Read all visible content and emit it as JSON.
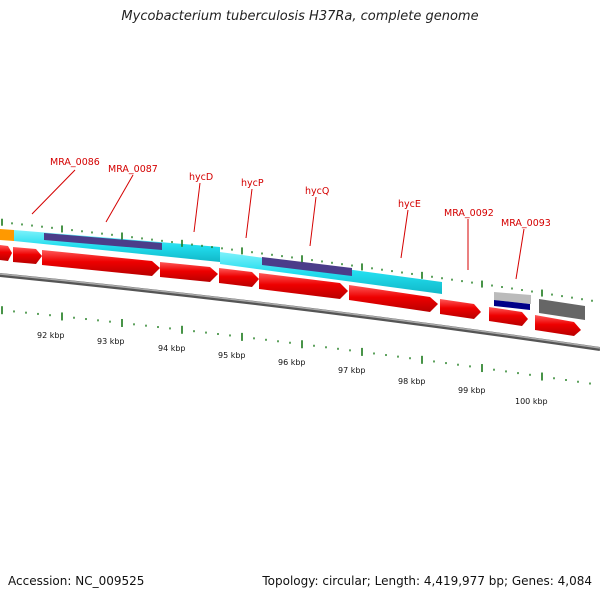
{
  "title": "Mycobacterium tuberculosis H37Ra, complete genome",
  "footer": {
    "accession": "Accession: NC_009525",
    "summary": "Topology: circular; Length: 4,419,977 bp; Genes: 4,084"
  },
  "colors": {
    "cds": "#ee0000",
    "label": "#d40000",
    "cyan": "#22ddee",
    "domain": "#4b3d8a",
    "orange": "#ff9900",
    "tick": "#1a7a1a",
    "backbone": "#777777"
  },
  "gene_labels": [
    "MRA_0086",
    "MRA_0087",
    "hycD",
    "hycP",
    "hycQ",
    "hycE",
    "MRA_0092",
    "MRA_0093"
  ],
  "scale_labels": [
    "92 kbp",
    "93 kbp",
    "94 kbp",
    "95 kbp",
    "96 kbp",
    "97 kbp",
    "98 kbp",
    "99 kbp",
    "100 kbp"
  ]
}
